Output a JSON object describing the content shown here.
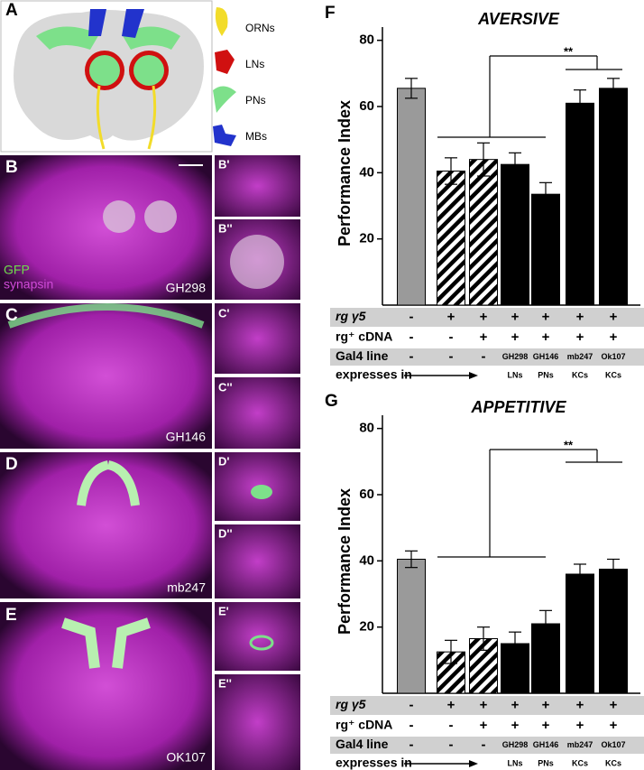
{
  "panels": {
    "a": {
      "letter": "A",
      "legend": [
        "ORNs",
        "LNs",
        "PNs",
        "MBs"
      ]
    },
    "images": [
      {
        "letter": "B",
        "inset1": "B'",
        "inset2": "B''",
        "line": "GH298",
        "stains": [
          "GFP",
          "synapsin"
        ]
      },
      {
        "letter": "C",
        "inset1": "C'",
        "inset2": "C''",
        "line": "GH146"
      },
      {
        "letter": "D",
        "inset1": "D'",
        "inset2": "D''",
        "line": "mb247"
      },
      {
        "letter": "E",
        "inset1": "E'",
        "inset2": "E''",
        "line": "OK107"
      }
    ]
  },
  "chart_data": [
    {
      "type": "bar",
      "letter": "F",
      "title": "AVERSIVE",
      "y_label": "Performance Index",
      "ylim": [
        0,
        84
      ],
      "yticks": [
        20,
        40,
        60,
        80
      ],
      "values": [
        65.5,
        40.5,
        44,
        42.5,
        33.5,
        61,
        65.5
      ],
      "errors": [
        3,
        4,
        5,
        3.5,
        3.5,
        4,
        3
      ],
      "colors": [
        "#9a9a9a",
        "#000000",
        "#000000",
        "#000000",
        "#000000",
        "#000000",
        "#000000"
      ],
      "hatched": [
        false,
        true,
        true,
        false,
        false,
        false,
        false
      ],
      "significance": "**",
      "conditions": [
        {
          "label": "rg γ5",
          "values": [
            "-",
            "+",
            "+",
            "+",
            "+",
            "+",
            "+"
          ]
        },
        {
          "label": "rg⁺ cDNA",
          "values": [
            "-",
            "-",
            "+",
            "+",
            "+",
            "+",
            "+"
          ]
        },
        {
          "label": "Gal4 line",
          "values": [
            "-",
            "-",
            "-",
            "GH298",
            "GH146",
            "mb247",
            "Ok107"
          ]
        }
      ],
      "expresses_in": {
        "label": "expresses in",
        "values": [
          "LNs",
          "PNs",
          "KCs",
          "KCs"
        ]
      }
    },
    {
      "type": "bar",
      "letter": "G",
      "title": "APPETITIVE",
      "y_label": "Performance Index",
      "ylim": [
        0,
        84
      ],
      "yticks": [
        20,
        40,
        60,
        80
      ],
      "values": [
        40.5,
        12.5,
        16.5,
        15,
        21,
        36,
        37.5
      ],
      "errors": [
        2.5,
        3.5,
        3.5,
        3.5,
        4,
        3,
        3
      ],
      "colors": [
        "#9a9a9a",
        "#000000",
        "#000000",
        "#000000",
        "#000000",
        "#000000",
        "#000000"
      ],
      "hatched": [
        false,
        true,
        true,
        false,
        false,
        false,
        false
      ],
      "significance": "**",
      "conditions": [
        {
          "label": "rg γ5",
          "values": [
            "-",
            "+",
            "+",
            "+",
            "+",
            "+",
            "+"
          ]
        },
        {
          "label": "rg⁺ cDNA",
          "values": [
            "-",
            "-",
            "+",
            "+",
            "+",
            "+",
            "+"
          ]
        },
        {
          "label": "Gal4 line",
          "values": [
            "-",
            "-",
            "-",
            "GH298",
            "GH146",
            "mb247",
            "Ok107"
          ]
        }
      ],
      "expresses_in": {
        "label": "expresses in",
        "values": [
          "LNs",
          "PNs",
          "KCs",
          "KCs"
        ]
      }
    }
  ]
}
